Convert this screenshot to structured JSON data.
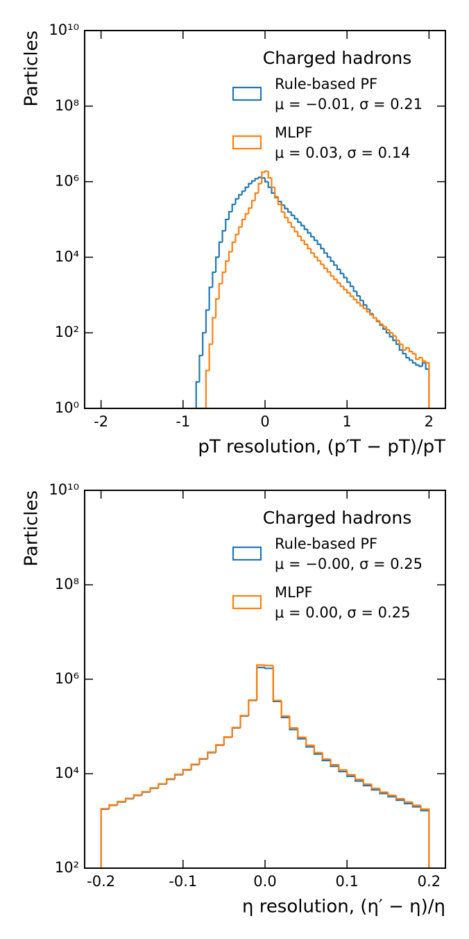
{
  "charts": [
    {
      "chart_data": {
        "type": "histogram",
        "log_y": true,
        "legend": "upper right",
        "xlabel": "pT resolution, (p′T − pT)/pT",
        "ylabel": "Particles",
        "legend_title": "Charged hadrons",
        "xlim": [
          -2.2,
          2.2
        ],
        "ylim": [
          1,
          10000000000
        ],
        "xticks": [
          -2,
          -1,
          0,
          1,
          2
        ],
        "yticks": [
          {
            "value": 1,
            "label": "10⁰"
          },
          {
            "value": 100,
            "label": "10²"
          },
          {
            "value": 10000,
            "label": "10⁴"
          },
          {
            "value": 1000000,
            "label": "10⁶"
          },
          {
            "value": 100000000,
            "label": "10⁸"
          },
          {
            "value": 10000000000,
            "label": "10¹⁰"
          }
        ],
        "bins": [
          -0.84,
          -0.8,
          -0.76,
          -0.72,
          -0.68,
          -0.64,
          -0.6,
          -0.56,
          -0.52,
          -0.48,
          -0.44,
          -0.4,
          -0.36,
          -0.32,
          -0.28,
          -0.24,
          -0.2,
          -0.16,
          -0.12,
          -0.08,
          -0.04,
          0,
          0.04,
          0.08,
          0.12,
          0.16,
          0.2,
          0.24,
          0.28,
          0.32,
          0.36,
          0.4,
          0.44,
          0.48,
          0.52,
          0.56,
          0.6,
          0.64,
          0.68,
          0.72,
          0.76,
          0.8,
          0.84,
          0.88,
          0.92,
          0.96,
          1.0,
          1.04,
          1.08,
          1.12,
          1.16,
          1.2,
          1.24,
          1.28,
          1.32,
          1.36,
          1.4,
          1.44,
          1.48,
          1.52,
          1.56,
          1.6,
          1.64,
          1.68,
          1.72,
          1.76,
          1.8,
          1.84,
          1.88,
          1.92,
          1.96,
          2.0
        ],
        "series": [
          {
            "name": "Rule-based PF",
            "stats": "μ = −0.01,  σ = 0.21",
            "color": "#1f77b4",
            "values": [
              5,
              25,
              100,
              400,
              1600,
              4000,
              10000,
              25000,
              50000,
              100000,
              160000,
              250000,
              350000,
              450000,
              560000,
              710000,
              890000,
              1050000,
              1200000,
              1300000,
              1260000,
              1000000,
              710000,
              500000,
              380000,
              300000,
              240000,
              195000,
              158000,
              129000,
              105000,
              85000,
              69000,
              55000,
              44000,
              35000,
              28000,
              22000,
              17000,
              13000,
              10200,
              7900,
              6200,
              4800,
              3700,
              2900,
              2200,
              1700,
              1260,
              950,
              720,
              550,
              420,
              320,
              250,
              200,
              160,
              126,
              100,
              79,
              63,
              50,
              35,
              28,
              22,
              19,
              16,
              14,
              13,
              16,
              11
            ]
          },
          {
            "name": "MLPF",
            "stats": "μ = 0.03,  σ = 0.14",
            "color": "#ff7f0e",
            "values": [
              0,
              0,
              0,
              10,
              50,
              250,
              790,
              2000,
              4000,
              7900,
              14000,
              25000,
              40000,
              63000,
              100000,
              141000,
              200000,
              316000,
              500000,
              890000,
              1780000,
              1900000,
              1260000,
              710000,
              400000,
              250000,
              158000,
              112000,
              83000,
              63000,
              48000,
              36000,
              28000,
              22000,
              17000,
              13000,
              10200,
              8100,
              6500,
              5100,
              4100,
              3200,
              2600,
              2100,
              1700,
              1400,
              1150,
              930,
              760,
              630,
              520,
              440,
              360,
              300,
              250,
              210,
              170,
              145,
              120,
              100,
              83,
              63,
              50,
              35,
              40,
              32,
              28,
              20,
              22,
              18,
              16
            ]
          }
        ]
      }
    },
    {
      "chart_data": {
        "type": "histogram",
        "log_y": true,
        "legend": "upper right",
        "xlabel": "η resolution, (η′ − η)/η",
        "ylabel": "Particles",
        "legend_title": "Charged hadrons",
        "xlim": [
          -0.22,
          0.22
        ],
        "ylim": [
          100,
          10000000000
        ],
        "xticks": [
          -0.2,
          -0.1,
          {
            "value": 0,
            "label": "0.0"
          },
          0.1,
          0.2
        ],
        "yticks": [
          {
            "value": 100,
            "label": "10²"
          },
          {
            "value": 10000,
            "label": "10⁴"
          },
          {
            "value": 1000000,
            "label": "10⁶"
          },
          {
            "value": 100000000,
            "label": "10⁸"
          },
          {
            "value": 10000000000,
            "label": "10¹⁰"
          }
        ],
        "bins": [
          -0.2,
          -0.19,
          -0.18,
          -0.17,
          -0.16,
          -0.15,
          -0.14,
          -0.13,
          -0.12,
          -0.11,
          -0.1,
          -0.09,
          -0.08,
          -0.07,
          -0.06,
          -0.05,
          -0.04,
          -0.03,
          -0.02,
          -0.01,
          0,
          0.01,
          0.02,
          0.03,
          0.04,
          0.05,
          0.06,
          0.07,
          0.08,
          0.09,
          0.1,
          0.11,
          0.12,
          0.13,
          0.14,
          0.15,
          0.16,
          0.17,
          0.18,
          0.19,
          0.2
        ],
        "series": [
          {
            "name": "Rule-based PF",
            "stats": "μ = −0.00,  σ = 0.25",
            "color": "#1f77b4",
            "values": [
              1780,
              2140,
              2510,
              2950,
              3470,
              4070,
              4900,
              6000,
              7600,
              9500,
              12000,
              15500,
              20400,
              28000,
              40000,
              59000,
              93000,
              166000,
              355000,
              1780000,
              1700000,
              340000,
              155000,
              86000,
              55000,
              37000,
              26000,
              19000,
              14400,
              11100,
              8800,
              7000,
              5600,
              4550,
              3800,
              3250,
              2750,
              2330,
              1990,
              1650
            ]
          },
          {
            "name": "MLPF",
            "stats": "μ = 0.00,  σ = 0.25",
            "color": "#ff7f0e",
            "values": [
              1820,
              2180,
              2560,
              3000,
              3540,
              4150,
              5000,
              6100,
              7750,
              9700,
              12200,
              15800,
              20800,
              28600,
              40800,
              60000,
              95000,
              170000,
              362000,
              2000000,
              1950000,
              355000,
              166000,
              93000,
              59000,
              40000,
              28000,
              20400,
              15500,
              12000,
              9500,
              7600,
              6000,
              4900,
              4070,
              3470,
              2950,
              2510,
              2140,
              1780
            ]
          }
        ]
      }
    }
  ]
}
